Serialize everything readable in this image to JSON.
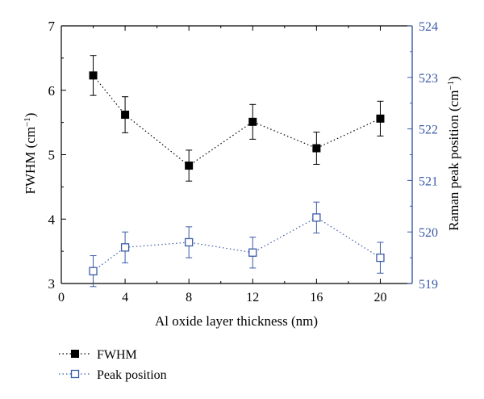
{
  "chart_data": {
    "type": "scatter",
    "xlabel": "Al oxide layer thickness (nm)",
    "ylabel": "FWHM (cm",
    "ylabel_sup": "−1",
    "ylabel_end": ")",
    "y2label": "Raman peak position (cm",
    "y2label_sup": "−1",
    "y2label_end": ")",
    "xlim": [
      0,
      22
    ],
    "ylim": [
      3,
      7
    ],
    "y2lim": [
      519,
      524
    ],
    "xticks": [
      0,
      4,
      8,
      12,
      16,
      20
    ],
    "yticks": [
      3,
      4,
      5,
      6,
      7
    ],
    "y2ticks": [
      519,
      520,
      521,
      522,
      523,
      524
    ],
    "x": [
      2,
      4,
      8,
      12,
      16,
      20
    ],
    "series": [
      {
        "name": "FWHM",
        "axis": "left",
        "marker": "filled-square",
        "color": "#000000",
        "values": [
          6.23,
          5.62,
          4.83,
          5.51,
          5.1,
          5.56
        ],
        "errors": [
          0.31,
          0.28,
          0.24,
          0.27,
          0.25,
          0.27
        ]
      },
      {
        "name": "Peak position",
        "axis": "right",
        "marker": "open-square",
        "color": "#3a5ba8",
        "values": [
          519.24,
          519.7,
          519.8,
          519.6,
          520.28,
          519.5
        ],
        "errors": [
          0.3,
          0.3,
          0.3,
          0.3,
          0.3,
          0.3
        ]
      }
    ],
    "legend_position": "bottom-left",
    "grid": false
  }
}
